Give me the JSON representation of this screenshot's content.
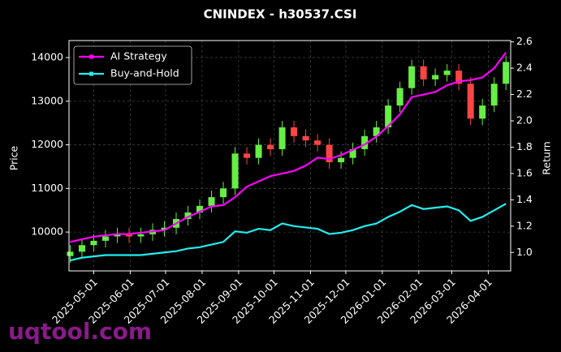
{
  "chart_data": {
    "type": "candlestick",
    "title": "CNINDEX - h30537.CSI",
    "y_label": "Price",
    "y2_label": "Return",
    "watermark": "uqtool.com",
    "x": [
      "2025-04-11",
      "2025-04-21",
      "2025-05-01",
      "2025-05-11",
      "2025-05-21",
      "2025-05-31",
      "2025-06-10",
      "2025-06-20",
      "2025-06-30",
      "2025-07-10",
      "2025-07-20",
      "2025-07-30",
      "2025-08-09",
      "2025-08-19",
      "2025-08-29",
      "2025-09-08",
      "2025-09-18",
      "2025-09-28",
      "2025-10-08",
      "2025-10-18",
      "2025-10-28",
      "2025-11-07",
      "2025-11-17",
      "2025-11-27",
      "2025-12-07",
      "2025-12-17",
      "2025-12-27",
      "2026-01-06",
      "2026-01-16",
      "2026-01-26",
      "2026-02-05",
      "2026-02-15",
      "2026-02-25",
      "2026-03-07",
      "2026-03-17",
      "2026-03-27",
      "2026-04-06",
      "2026-04-16"
    ],
    "open": [
      9450,
      9550,
      9700,
      9800,
      9900,
      9950,
      9900,
      9950,
      10050,
      10100,
      10300,
      10450,
      10600,
      10800,
      11000,
      11800,
      11700,
      12000,
      11900,
      12400,
      12200,
      12100,
      12000,
      11600,
      11700,
      11900,
      12200,
      12400,
      12900,
      13300,
      13800,
      13500,
      13600,
      13700,
      13400,
      12600,
      12900,
      13400
    ],
    "high": [
      9700,
      9850,
      9950,
      10050,
      10100,
      10100,
      10100,
      10200,
      10250,
      10450,
      10600,
      10750,
      10950,
      11150,
      11950,
      11950,
      12150,
      12150,
      12550,
      12550,
      12350,
      12250,
      12150,
      11850,
      12050,
      12350,
      12550,
      13050,
      13450,
      13950,
      13950,
      13750,
      13850,
      13850,
      13550,
      13050,
      13550,
      14050
    ],
    "low": [
      9300,
      9400,
      9550,
      9650,
      9750,
      9750,
      9750,
      9800,
      9900,
      9950,
      10150,
      10300,
      10450,
      10650,
      10850,
      11550,
      11550,
      11750,
      11750,
      12050,
      11950,
      11850,
      11450,
      11450,
      11550,
      11750,
      12050,
      12250,
      12750,
      13150,
      13350,
      13350,
      13450,
      13250,
      12450,
      12450,
      12750,
      13250
    ],
    "close": [
      9550,
      9700,
      9800,
      9900,
      9950,
      9900,
      9950,
      10050,
      10100,
      10300,
      10450,
      10600,
      10800,
      11000,
      11800,
      11700,
      12000,
      11900,
      12400,
      12200,
      12100,
      12000,
      11600,
      11700,
      11900,
      12200,
      12400,
      12900,
      13300,
      13800,
      13500,
      13600,
      13700,
      13400,
      12600,
      12900,
      13400,
      13900
    ],
    "up_color": "#66ee44",
    "down_color": "#ff4444",
    "series": [
      {
        "name": "AI Strategy",
        "color": "#ff00ff",
        "axis": "y2",
        "values": [
          1.08,
          1.1,
          1.12,
          1.13,
          1.14,
          1.14,
          1.15,
          1.16,
          1.17,
          1.22,
          1.27,
          1.31,
          1.35,
          1.36,
          1.42,
          1.5,
          1.54,
          1.58,
          1.6,
          1.62,
          1.66,
          1.72,
          1.71,
          1.74,
          1.78,
          1.82,
          1.88,
          1.96,
          2.05,
          2.18,
          2.2,
          2.22,
          2.27,
          2.3,
          2.31,
          2.33,
          2.4,
          2.52
        ]
      },
      {
        "name": "Buy-and-Hold",
        "color": "#22eeee",
        "axis": "y2",
        "values": [
          0.94,
          0.96,
          0.97,
          0.98,
          0.98,
          0.98,
          0.98,
          0.99,
          1.0,
          1.01,
          1.03,
          1.04,
          1.06,
          1.08,
          1.16,
          1.15,
          1.18,
          1.17,
          1.22,
          1.2,
          1.19,
          1.18,
          1.14,
          1.15,
          1.17,
          1.2,
          1.22,
          1.27,
          1.31,
          1.36,
          1.33,
          1.34,
          1.35,
          1.32,
          1.24,
          1.27,
          1.32,
          1.37
        ]
      }
    ],
    "xlim": [
      "2025-04-10",
      "2026-04-20"
    ],
    "xticks": [
      "2025-05-01",
      "2025-06-01",
      "2025-07-01",
      "2025-08-01",
      "2025-09-01",
      "2025-10-01",
      "2025-11-01",
      "2025-12-01",
      "2026-01-01",
      "2026-02-01",
      "2026-03-01",
      "2026-04-01"
    ],
    "ylim": [
      9110,
      14390
    ],
    "yticks": [
      10000,
      11000,
      12000,
      13000,
      14000
    ],
    "y2lim": [
      0.86,
      2.61
    ],
    "y2ticks": [
      {
        "value": 1,
        "label": "1.0"
      },
      1.2,
      1.4,
      1.6,
      1.8,
      {
        "value": 2,
        "label": "2.0"
      },
      2.2,
      2.4,
      2.6
    ],
    "grid": true,
    "legend": "upper left"
  }
}
